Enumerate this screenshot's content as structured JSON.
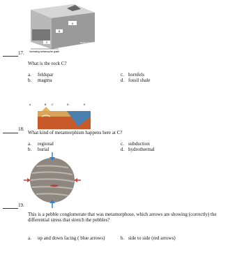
{
  "questions": [
    {
      "number": "17.",
      "prompt": "What is the rock C?",
      "figure": {
        "labels": [
          "A",
          "B",
          "C",
          "Magma chamber",
          "Increasing metamorphic grade"
        ]
      },
      "options": [
        [
          "a.",
          "feldspar"
        ],
        [
          "b.",
          "magma"
        ],
        [
          "c.",
          "hornfels"
        ],
        [
          "d.",
          "fossil shale"
        ]
      ]
    },
    {
      "number": "18.",
      "prompt": "What kind of metamorphism happens here at C?",
      "figure": {
        "labels": [
          "A",
          "B",
          "C",
          "D",
          "E"
        ]
      },
      "options": [
        [
          "a.",
          "regional"
        ],
        [
          "b.",
          "burial"
        ],
        [
          "c.",
          "subduction"
        ],
        [
          "d.",
          "hydrothermal"
        ]
      ]
    },
    {
      "number": "19.",
      "prompt": "This is a pebble conglomerate that was metamorphose, which arrows are showing (correctly) the differential stress that stretch the pebbles?",
      "options": [
        [
          "a.",
          "up and down facing ( blue arrows)"
        ],
        [
          "b.",
          "side to side (red arrows)"
        ]
      ]
    }
  ]
}
